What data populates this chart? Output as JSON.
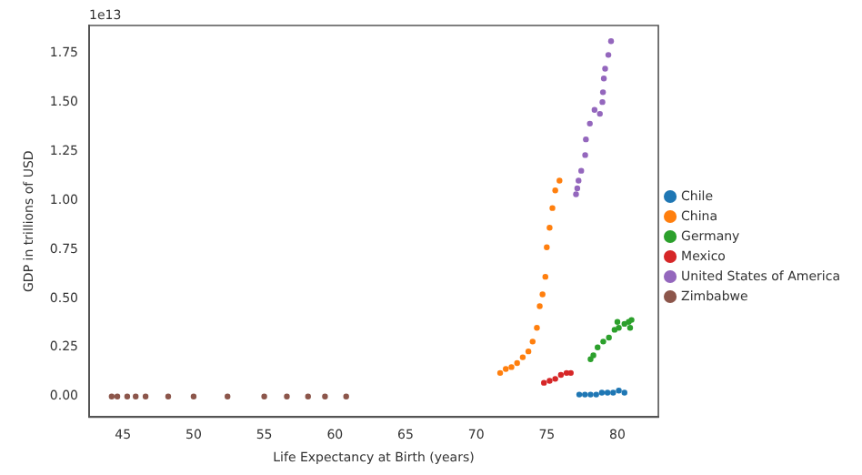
{
  "chart_data": {
    "type": "scatter",
    "xlabel": "Life Expectancy at Birth (years)",
    "ylabel": "GDP in trillions of USD",
    "annotations": [
      "1e13"
    ],
    "xlim": [
      42.6,
      82.9
    ],
    "xticks": [
      45,
      50,
      55,
      60,
      65,
      70,
      75,
      80
    ],
    "ylim": [
      -0.105,
      1.89
    ],
    "yticks": [
      {
        "value": 0,
        "label": "0.00"
      },
      {
        "value": 0.25,
        "label": "0.25"
      },
      {
        "value": 0.5,
        "label": "0.50"
      },
      {
        "value": 0.75,
        "label": "0.75"
      },
      {
        "value": 1,
        "label": "1.00"
      },
      {
        "value": 1.25,
        "label": "1.25"
      },
      {
        "value": 1.5,
        "label": "1.50"
      },
      {
        "value": 1.75,
        "label": "1.75"
      }
    ],
    "grid": false,
    "legend": "right",
    "marker": "circle",
    "series": [
      {
        "name": "Chile",
        "color": "#1f77b4",
        "x": [
          77.3,
          77.7,
          78.1,
          78.5,
          78.9,
          79.3,
          79.7,
          80.1,
          80.5
        ],
        "values": [
          0.01,
          0.01,
          0.01,
          0.01,
          0.02,
          0.02,
          0.02,
          0.03,
          0.02
        ]
      },
      {
        "name": "China",
        "color": "#ff7f0e",
        "x": [
          71.7,
          72.1,
          72.5,
          72.9,
          73.3,
          73.7,
          74.0,
          74.3,
          74.5,
          74.7,
          74.9,
          75.0,
          75.2,
          75.4,
          75.6,
          75.9
        ],
        "values": [
          0.12,
          0.14,
          0.15,
          0.17,
          0.2,
          0.23,
          0.28,
          0.35,
          0.46,
          0.52,
          0.61,
          0.76,
          0.86,
          0.96,
          1.05,
          1.1
        ]
      },
      {
        "name": "Germany",
        "color": "#2ca02c",
        "x": [
          78.1,
          78.3,
          78.6,
          79.0,
          79.4,
          79.8,
          80.0,
          80.1,
          80.5,
          80.8,
          80.9,
          81.0
        ],
        "values": [
          0.19,
          0.21,
          0.25,
          0.28,
          0.3,
          0.34,
          0.38,
          0.35,
          0.37,
          0.38,
          0.35,
          0.39
        ]
      },
      {
        "name": "Mexico",
        "color": "#d62728",
        "x": [
          74.8,
          75.2,
          75.6,
          76.0,
          76.4,
          76.7
        ],
        "values": [
          0.07,
          0.08,
          0.09,
          0.11,
          0.12,
          0.12
        ]
      },
      {
        "name": "United States of America",
        "color": "#9467bd",
        "x": [
          77.07,
          77.16,
          77.25,
          77.44,
          77.72,
          77.77,
          78.05,
          78.38,
          78.76,
          78.94,
          78.98,
          79.04,
          79.13,
          79.36,
          79.55
        ],
        "values": [
          1.03,
          1.06,
          1.1,
          1.15,
          1.23,
          1.31,
          1.39,
          1.46,
          1.44,
          1.5,
          1.55,
          1.62,
          1.67,
          1.74,
          1.81
        ]
      },
      {
        "name": "Zimbabwe",
        "color": "#8c564b",
        "x": [
          44.2,
          44.6,
          45.3,
          45.9,
          46.6,
          48.2,
          50.0,
          52.4,
          55.0,
          56.6,
          58.1,
          59.3,
          60.8
        ],
        "values": [
          0,
          0,
          0,
          0,
          0,
          0,
          0,
          0,
          0,
          0,
          0,
          0,
          0
        ]
      }
    ]
  }
}
